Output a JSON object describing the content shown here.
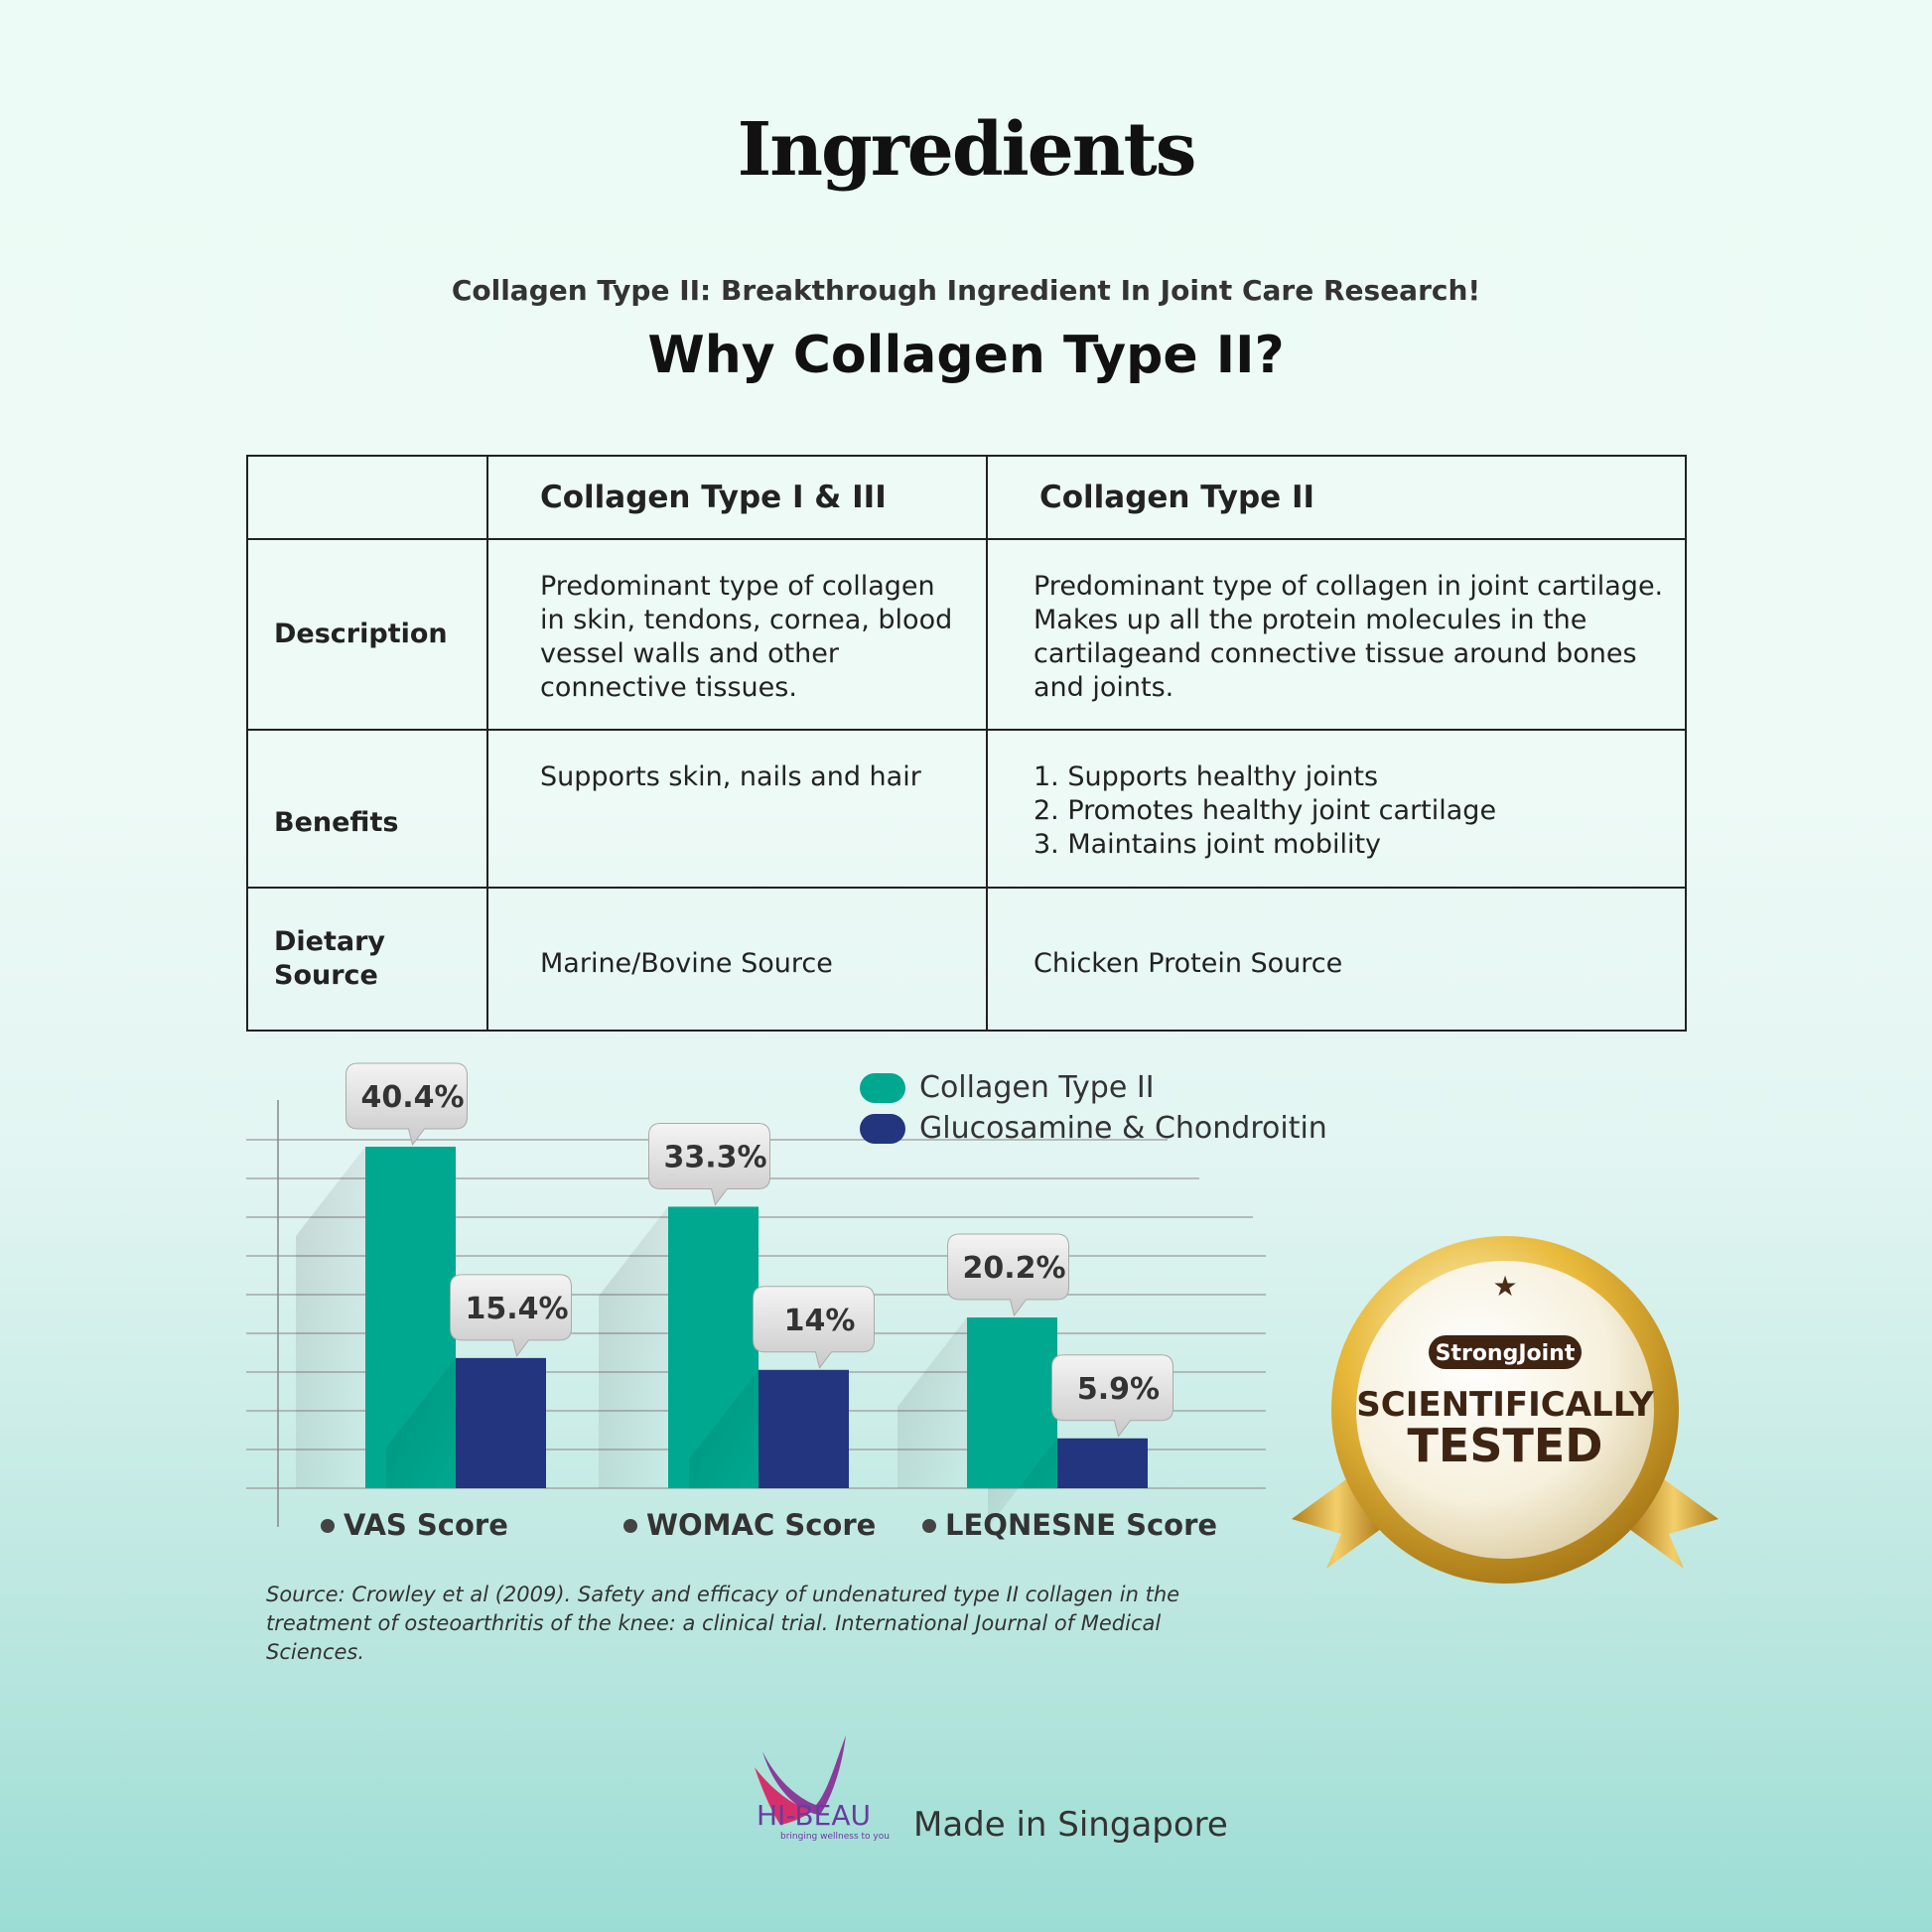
{
  "title": "Ingredients",
  "subtitle": "Collagen Type II: Breakthrough Ingredient In Joint Care Research!",
  "heading": "Why Collagen Type II?",
  "table": {
    "col1": "Collagen Type I & III",
    "col2": "Collagen Type II",
    "rows": [
      {
        "label": "Description",
        "c1": "Predominant type of collagen in skin, tendons, cornea, blood vessel walls and other connective tissues.",
        "c2": "Predominant type of collagen in joint cartilage. Makes up all the protein molecules in the cartilageand connective tissue around bones and joints."
      },
      {
        "label": "Benefits",
        "c1": "Supports skin, nails and hair",
        "c2_lines": [
          "1. Supports healthy joints",
          "2. Promotes healthy joint cartilage",
          "3. Maintains joint mobility"
        ]
      },
      {
        "label": "Dietary Source",
        "c1": "Marine/Bovine Source",
        "c2": "Chicken Protein Source"
      }
    ]
  },
  "chart_data": {
    "type": "bar",
    "categories": [
      "VAS Score",
      "WOMAC Score",
      "LEQNESNE Score"
    ],
    "series": [
      {
        "name": "Collagen Type II",
        "values": [
          40.4,
          33.3,
          20.2
        ],
        "labels": [
          "40.4%",
          "33.3%",
          "20.2%"
        ],
        "color": "#00a88f"
      },
      {
        "name": "Glucosamine & Chondroitin",
        "values": [
          15.4,
          14,
          5.9
        ],
        "labels": [
          "15.4%",
          "14%",
          "5.9%"
        ],
        "color": "#22357e"
      }
    ],
    "ylim": [
      0,
      45
    ],
    "grid": true,
    "legend": "top-right"
  },
  "source": "Source: Crowley et al (2009). Safety and efficacy of undenatured type II collagen in the treatment of osteoarthritis of the knee: a clinical trial. International Journal of Medical Sciences.",
  "badge": {
    "tag": "StrongJoint",
    "line1": "SCIENTIFICALLY",
    "line2": "TESTED"
  },
  "footer": {
    "brand": "HI-BEAU",
    "tagline": "bringing wellness to you",
    "made_in": "Made in Singapore"
  }
}
